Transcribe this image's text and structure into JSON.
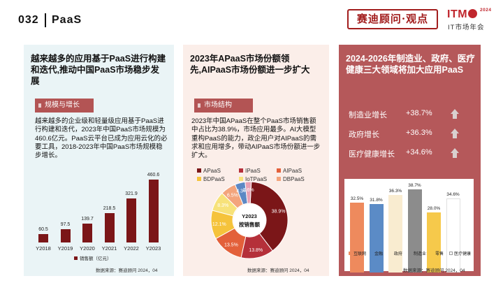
{
  "header": {
    "page_number": "032",
    "section_title": "PaaS",
    "seal_text": "赛迪顾问·观点",
    "logo_main": "ITMC",
    "logo_year": "2024",
    "logo_sub": "IT市场年会"
  },
  "panel1": {
    "heading": "越来越多的应用基于PaaS进行构建和迭代,推动中国PaaS市场稳步发展",
    "tag": "规模与增长",
    "body": "越来越多的企业级和轻量级应用基于PaaS进行构建和迭代，2023年中国PaaS市场规模为460.6亿元。PaaS云平台已成为应用云化的必要工具，2018-2023年中国PaaS市场规模稳步增长。",
    "legend": "销售额（亿元）",
    "source": "数据来源：赛迪顾问 2024，04",
    "chart_data": {
      "type": "bar",
      "categories": [
        "Y2018",
        "Y2019",
        "Y2020",
        "Y2021",
        "Y2022",
        "Y2023"
      ],
      "values": [
        60.5,
        97.5,
        139.7,
        218.5,
        321.9,
        460.6
      ],
      "value_labels": [
        "60.5",
        "97.5",
        "139.7",
        "218.5",
        "321.9",
        "460.6"
      ],
      "series_name": "销售额（亿元）",
      "color": "#7b1618",
      "ylim": [
        0,
        500
      ]
    }
  },
  "panel2": {
    "heading": "2023年APaaS市场份额领先,AIPaaS市场份额进一步扩大",
    "tag": "市场结构",
    "body": "2023年中国APaaS在整个PaaS市场销售额中占比为38.9%，市场应用最多。AI大模型重构PaaS的能力，政企用户对AIPaaS的需求和应用增多，带动AIPaaS市场份额进一步扩大。",
    "center_line1": "Y2023",
    "center_line2": "按销售额",
    "source": "数据来源：赛迪顾问 2024，04",
    "chart_data": {
      "type": "pie",
      "title": "Y2023 按销售额",
      "categories": [
        "APaaS",
        "IPaaS",
        "AIPaaS",
        "BDPaaS",
        "IoTPaaS",
        "DBPaaS"
      ],
      "values": [
        38.9,
        13.8,
        13.5,
        12.1,
        8.3,
        6.5
      ],
      "labels": [
        "38.9%",
        "13.8%",
        "13.5%",
        "12.1%",
        "8.3%",
        "6.5%"
      ],
      "extra_slices": [
        {
          "value": 4.3,
          "label": "4.3%"
        },
        {
          "value": 2.6,
          "label": "2.6%"
        }
      ],
      "colors": [
        "#7b1618",
        "#b5303a",
        "#e3603a",
        "#f5c33b",
        "#f7e27a",
        "#f3a47c",
        "#5c88c4",
        "#e9a1b3"
      ]
    }
  },
  "panel3": {
    "heading": "2024-2026年制造业、政府、医疗健康三大领域将加大应用PaaS",
    "stats": [
      {
        "label": "制造业增长",
        "value": "+38.7%"
      },
      {
        "label": "政府增长",
        "value": "+36.3%"
      },
      {
        "label": "医疗健康增长",
        "value": "+34.6%"
      }
    ],
    "source": "数据来源：赛迪顾问 2024，04",
    "chart_data": {
      "type": "bar",
      "categories": [
        "互联网",
        "金融",
        "政府",
        "制造业",
        "零售",
        "医疗健康"
      ],
      "values": [
        32.5,
        31.8,
        36.3,
        38.7,
        28.0,
        34.6
      ],
      "value_labels": [
        "32.5%",
        "31.8%",
        "36.3%",
        "38.7%",
        "28.0%",
        "34.6%"
      ],
      "colors": [
        "#ee8a5d",
        "#5b8bc6",
        "#f9ecd0",
        "#8c8c8c",
        "#f6c94b",
        "#ffffff"
      ],
      "ylim": [
        0,
        45
      ]
    }
  }
}
